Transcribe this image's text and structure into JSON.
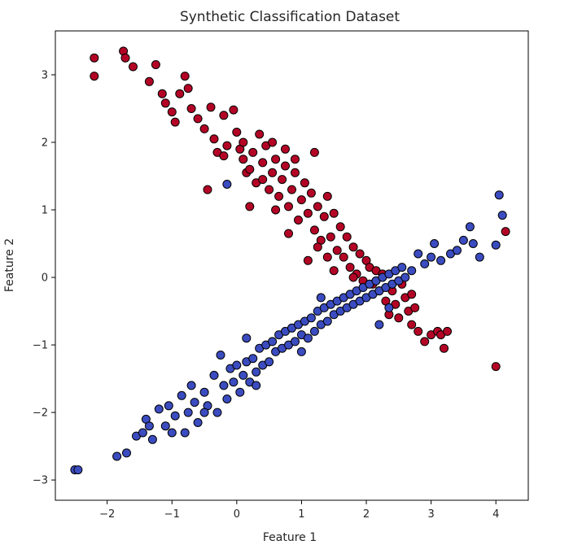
{
  "chart_data": {
    "type": "scatter",
    "title": "Synthetic Classification Dataset",
    "xlabel": "Feature 1",
    "ylabel": "Feature 2",
    "xlim": [
      -2.8,
      4.5
    ],
    "ylim": [
      -3.3,
      3.65
    ],
    "xticks": [
      -2,
      -1,
      0,
      1,
      2,
      3,
      4
    ],
    "yticks": [
      -3,
      -2,
      -1,
      0,
      1,
      2,
      3
    ],
    "grid": false,
    "colors": {
      "class_0": "#3b4cc0",
      "class_1": "#b40426",
      "edge": "#000000"
    },
    "series": [
      {
        "values": [
          [
            -2.2,
            3.25
          ],
          [
            -2.2,
            2.98
          ],
          [
            -1.75,
            3.35
          ],
          [
            -1.72,
            3.25
          ],
          [
            -1.6,
            3.12
          ],
          [
            -1.35,
            2.9
          ],
          [
            -1.25,
            3.15
          ],
          [
            -1.15,
            2.72
          ],
          [
            -1.1,
            2.58
          ],
          [
            -1.0,
            2.45
          ],
          [
            -0.95,
            2.3
          ],
          [
            -0.88,
            2.72
          ],
          [
            -0.8,
            2.98
          ],
          [
            -0.75,
            2.8
          ],
          [
            -0.7,
            2.5
          ],
          [
            -0.6,
            2.35
          ],
          [
            -0.5,
            2.2
          ],
          [
            -0.4,
            2.52
          ],
          [
            -0.35,
            2.05
          ],
          [
            -0.3,
            1.85
          ],
          [
            -0.2,
            2.4
          ],
          [
            -0.15,
            1.95
          ],
          [
            -0.05,
            2.48
          ],
          [
            0.0,
            2.15
          ],
          [
            0.05,
            1.9
          ],
          [
            0.1,
            1.75
          ],
          [
            0.15,
            1.55
          ],
          [
            0.2,
            1.6
          ],
          [
            0.25,
            1.85
          ],
          [
            0.3,
            1.4
          ],
          [
            0.35,
            2.12
          ],
          [
            0.4,
            1.7
          ],
          [
            0.45,
            1.95
          ],
          [
            0.5,
            1.3
          ],
          [
            0.55,
            1.55
          ],
          [
            0.6,
            1.75
          ],
          [
            0.65,
            1.2
          ],
          [
            0.7,
            1.45
          ],
          [
            0.75,
            1.65
          ],
          [
            0.8,
            1.05
          ],
          [
            0.85,
            1.3
          ],
          [
            0.9,
            1.55
          ],
          [
            0.95,
            0.85
          ],
          [
            1.0,
            1.15
          ],
          [
            1.05,
            1.4
          ],
          [
            1.1,
            0.95
          ],
          [
            1.15,
            1.25
          ],
          [
            1.2,
            0.7
          ],
          [
            1.25,
            1.05
          ],
          [
            1.3,
            0.55
          ],
          [
            1.35,
            0.9
          ],
          [
            1.4,
            1.2
          ],
          [
            1.45,
            0.6
          ],
          [
            1.5,
            0.95
          ],
          [
            1.55,
            0.4
          ],
          [
            1.6,
            0.75
          ],
          [
            1.65,
            0.3
          ],
          [
            1.7,
            0.6
          ],
          [
            1.75,
            0.15
          ],
          [
            1.8,
            0.45
          ],
          [
            1.85,
            0.05
          ],
          [
            1.9,
            0.35
          ],
          [
            1.95,
            -0.05
          ],
          [
            2.0,
            0.25
          ],
          [
            2.05,
            0.15
          ],
          [
            2.1,
            -0.1
          ],
          [
            2.15,
            0.1
          ],
          [
            2.2,
            -0.2
          ],
          [
            2.25,
            0.05
          ],
          [
            2.3,
            -0.35
          ],
          [
            2.4,
            -0.2
          ],
          [
            2.45,
            -0.4
          ],
          [
            2.5,
            -0.6
          ],
          [
            2.6,
            -0.3
          ],
          [
            2.65,
            -0.5
          ],
          [
            2.7,
            -0.7
          ],
          [
            2.75,
            -0.45
          ],
          [
            2.8,
            -0.8
          ],
          [
            2.9,
            -0.95
          ],
          [
            3.0,
            -0.85
          ],
          [
            3.1,
            -0.8
          ],
          [
            3.15,
            -0.85
          ],
          [
            3.2,
            -1.05
          ],
          [
            3.25,
            -0.8
          ],
          [
            4.0,
            -1.32
          ],
          [
            4.15,
            0.68
          ],
          [
            0.8,
            0.65
          ],
          [
            1.1,
            0.25
          ],
          [
            0.6,
            1.0
          ],
          [
            0.4,
            1.45
          ],
          [
            0.2,
            1.05
          ],
          [
            0.1,
            2.0
          ],
          [
            -0.2,
            1.8
          ],
          [
            -0.45,
            1.3
          ],
          [
            1.5,
            0.1
          ],
          [
            1.25,
            0.45
          ],
          [
            0.9,
            1.75
          ],
          [
            1.2,
            1.85
          ],
          [
            1.4,
            0.3
          ],
          [
            1.8,
            0.0
          ],
          [
            2.35,
            -0.55
          ],
          [
            2.55,
            -0.1
          ],
          [
            2.7,
            -0.25
          ],
          [
            0.55,
            2.0
          ],
          [
            0.75,
            1.9
          ]
        ]
      },
      {
        "values": [
          [
            -2.5,
            -2.85
          ],
          [
            -2.45,
            -2.85
          ],
          [
            -1.85,
            -2.65
          ],
          [
            -1.7,
            -2.6
          ],
          [
            -1.55,
            -2.35
          ],
          [
            -1.45,
            -2.3
          ],
          [
            -1.4,
            -2.1
          ],
          [
            -1.35,
            -2.2
          ],
          [
            -1.3,
            -2.4
          ],
          [
            -1.2,
            -1.95
          ],
          [
            -1.1,
            -2.2
          ],
          [
            -1.05,
            -1.9
          ],
          [
            -0.95,
            -2.05
          ],
          [
            -0.85,
            -1.75
          ],
          [
            -0.8,
            -2.3
          ],
          [
            -0.75,
            -2.0
          ],
          [
            -0.65,
            -1.85
          ],
          [
            -0.6,
            -2.15
          ],
          [
            -0.5,
            -1.7
          ],
          [
            -0.45,
            -1.9
          ],
          [
            -0.35,
            -1.45
          ],
          [
            -0.3,
            -2.0
          ],
          [
            -0.2,
            -1.6
          ],
          [
            -0.15,
            -1.8
          ],
          [
            -0.1,
            -1.35
          ],
          [
            -0.05,
            -1.55
          ],
          [
            0.0,
            -1.3
          ],
          [
            0.05,
            -1.7
          ],
          [
            0.1,
            -1.45
          ],
          [
            0.15,
            -1.25
          ],
          [
            0.2,
            -1.55
          ],
          [
            0.25,
            -1.2
          ],
          [
            0.3,
            -1.4
          ],
          [
            0.35,
            -1.05
          ],
          [
            0.4,
            -1.3
          ],
          [
            0.45,
            -1.0
          ],
          [
            0.5,
            -1.25
          ],
          [
            0.55,
            -0.95
          ],
          [
            0.6,
            -1.1
          ],
          [
            0.65,
            -0.85
          ],
          [
            0.7,
            -1.05
          ],
          [
            0.75,
            -0.8
          ],
          [
            0.8,
            -1.0
          ],
          [
            0.85,
            -0.75
          ],
          [
            0.9,
            -0.95
          ],
          [
            0.95,
            -0.7
          ],
          [
            1.0,
            -0.85
          ],
          [
            1.05,
            -0.65
          ],
          [
            1.1,
            -0.9
          ],
          [
            1.15,
            -0.6
          ],
          [
            1.2,
            -0.8
          ],
          [
            1.25,
            -0.5
          ],
          [
            1.3,
            -0.7
          ],
          [
            1.35,
            -0.45
          ],
          [
            1.4,
            -0.65
          ],
          [
            1.45,
            -0.4
          ],
          [
            1.5,
            -0.55
          ],
          [
            1.55,
            -0.35
          ],
          [
            1.6,
            -0.5
          ],
          [
            1.65,
            -0.3
          ],
          [
            1.7,
            -0.45
          ],
          [
            1.75,
            -0.25
          ],
          [
            1.8,
            -0.4
          ],
          [
            1.85,
            -0.2
          ],
          [
            1.9,
            -0.35
          ],
          [
            1.95,
            -0.15
          ],
          [
            2.0,
            -0.3
          ],
          [
            2.05,
            -0.1
          ],
          [
            2.1,
            -0.25
          ],
          [
            2.15,
            -0.05
          ],
          [
            2.2,
            -0.2
          ],
          [
            2.25,
            0.0
          ],
          [
            2.3,
            -0.15
          ],
          [
            2.35,
            0.05
          ],
          [
            2.4,
            -0.1
          ],
          [
            2.45,
            0.1
          ],
          [
            2.5,
            -0.05
          ],
          [
            2.55,
            0.15
          ],
          [
            2.6,
            0.0
          ],
          [
            2.7,
            0.1
          ],
          [
            2.8,
            0.35
          ],
          [
            2.9,
            0.2
          ],
          [
            3.0,
            0.3
          ],
          [
            3.05,
            0.5
          ],
          [
            3.15,
            0.25
          ],
          [
            3.3,
            0.35
          ],
          [
            3.4,
            0.4
          ],
          [
            3.5,
            0.55
          ],
          [
            3.6,
            0.75
          ],
          [
            3.65,
            0.5
          ],
          [
            3.75,
            0.3
          ],
          [
            4.0,
            0.48
          ],
          [
            4.05,
            1.22
          ],
          [
            4.1,
            0.92
          ],
          [
            -0.15,
            1.38
          ],
          [
            1.0,
            -1.1
          ],
          [
            0.3,
            -1.6
          ],
          [
            -0.5,
            -2.0
          ],
          [
            -1.0,
            -2.3
          ],
          [
            2.2,
            -0.7
          ],
          [
            2.35,
            -0.45
          ],
          [
            0.15,
            -0.9
          ],
          [
            1.3,
            -0.3
          ],
          [
            -0.25,
            -1.15
          ],
          [
            -0.7,
            -1.6
          ]
        ]
      }
    ]
  }
}
